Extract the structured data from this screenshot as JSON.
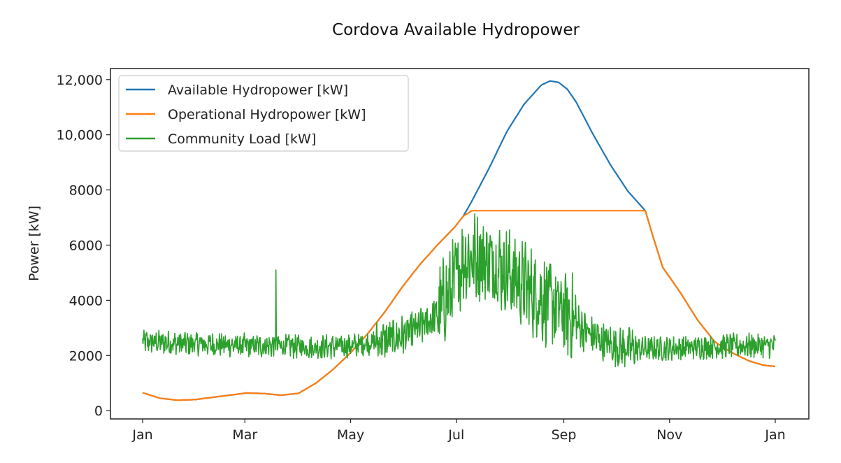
{
  "chart_data": {
    "type": "line",
    "title": "Cordova Available Hydropower",
    "xlabel": "",
    "ylabel": "Power [kW]",
    "x_unit": "day_of_year",
    "xlim": [
      0,
      365
    ],
    "ylim": [
      -300,
      12400
    ],
    "xticks": [
      {
        "value": 0,
        "label": "Jan"
      },
      {
        "value": 59,
        "label": "Mar"
      },
      {
        "value": 120,
        "label": "May"
      },
      {
        "value": 181,
        "label": "Jul"
      },
      {
        "value": 243,
        "label": "Sep"
      },
      {
        "value": 304,
        "label": "Nov"
      },
      {
        "value": 365,
        "label": "Jan"
      }
    ],
    "yticks": [
      {
        "value": 0,
        "label": "0"
      },
      {
        "value": 2000,
        "label": "2000"
      },
      {
        "value": 4000,
        "label": "4000"
      },
      {
        "value": 6000,
        "label": "6000"
      },
      {
        "value": 8000,
        "label": "8000"
      },
      {
        "value": 10000,
        "label": "10,000"
      },
      {
        "value": 12000,
        "label": "12,000"
      }
    ],
    "legend_position": "top-left",
    "series": [
      {
        "name": "Available Hydropower [kW]",
        "color": "#1f77b4",
        "x": [
          0,
          10,
          20,
          30,
          45,
          60,
          70,
          80,
          90,
          100,
          110,
          120,
          130,
          140,
          150,
          160,
          170,
          180,
          185,
          190,
          200,
          210,
          220,
          230,
          235,
          240,
          245,
          250,
          260,
          270,
          280,
          290,
          295,
          300,
          310,
          320,
          330,
          340,
          350,
          358,
          365
        ],
        "values": [
          650,
          450,
          380,
          400,
          520,
          640,
          620,
          560,
          630,
          1000,
          1500,
          2100,
          2800,
          3600,
          4500,
          5300,
          6000,
          6650,
          7050,
          7600,
          8800,
          10100,
          11100,
          11800,
          11950,
          11900,
          11650,
          11200,
          10000,
          8900,
          7950,
          7250,
          6200,
          5200,
          4300,
          3300,
          2500,
          2100,
          1800,
          1650,
          1600
        ]
      },
      {
        "name": "Operational Hydropower [kW]",
        "color": "#ff7f0e",
        "x": [
          0,
          10,
          20,
          30,
          45,
          60,
          70,
          80,
          90,
          100,
          110,
          120,
          130,
          140,
          150,
          160,
          170,
          180,
          185,
          190,
          200,
          210,
          220,
          230,
          240,
          250,
          260,
          270,
          280,
          290,
          295,
          300,
          310,
          320,
          330,
          340,
          350,
          358,
          365
        ],
        "values": [
          650,
          450,
          380,
          400,
          520,
          640,
          620,
          560,
          630,
          1000,
          1500,
          2100,
          2800,
          3600,
          4500,
          5300,
          6000,
          6650,
          7050,
          7250,
          7250,
          7250,
          7250,
          7250,
          7250,
          7250,
          7250,
          7250,
          7250,
          7250,
          6200,
          5200,
          4300,
          3300,
          2500,
          2100,
          1800,
          1650,
          1600
        ]
      },
      {
        "name": "Community Load [kW]",
        "color": "#2ca02c",
        "noise": "seasonal_baseline",
        "spike": {
          "x": 77,
          "value": 5100
        },
        "x": [
          0,
          20,
          40,
          60,
          80,
          100,
          120,
          135,
          150,
          160,
          170,
          178,
          185,
          195,
          205,
          215,
          225,
          235,
          245,
          255,
          265,
          275,
          285,
          300,
          320,
          340,
          365
        ],
        "values": [
          2500,
          2450,
          2400,
          2350,
          2350,
          2300,
          2350,
          2500,
          2700,
          3000,
          3500,
          4400,
          5500,
          5600,
          5300,
          4800,
          4300,
          3900,
          3500,
          2900,
          2500,
          2300,
          2250,
          2250,
          2300,
          2350,
          2350
        ]
      }
    ]
  }
}
